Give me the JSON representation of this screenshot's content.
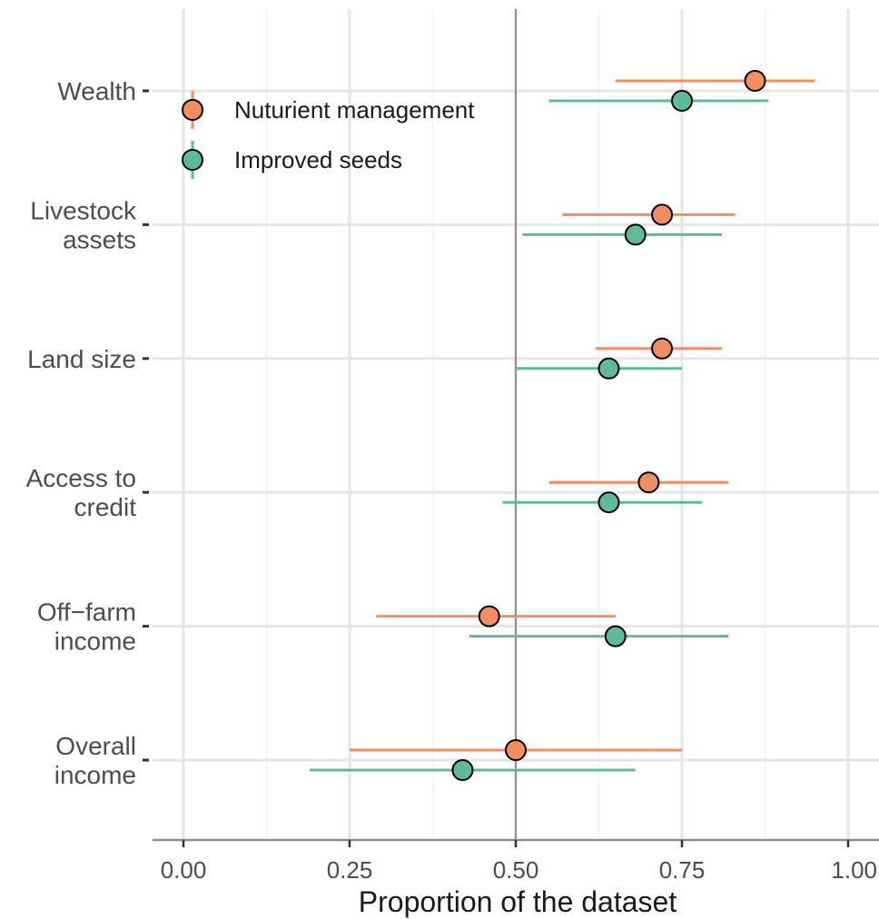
{
  "chart_data": {
    "type": "scatter",
    "xlabel": "Proportion of the dataset",
    "xlim": [
      0.0,
      1.0
    ],
    "x_ticks": [
      "0.00",
      "0.25",
      "0.50",
      "0.75",
      "1.00"
    ],
    "reference_line": 0.5,
    "grid": true,
    "legend_position": "top-left",
    "categories": [
      [
        "Wealth"
      ],
      [
        "Livestock",
        "assets"
      ],
      [
        "Land size"
      ],
      [
        "Access to",
        "credit"
      ],
      [
        "Off−farm",
        "income"
      ],
      [
        "Overall",
        "income"
      ]
    ],
    "series": [
      {
        "name": "Nuturient management",
        "color": "#F28E62",
        "values": [
          0.86,
          0.72,
          0.72,
          0.7,
          0.46,
          0.5
        ],
        "ci_low": [
          0.65,
          0.57,
          0.62,
          0.55,
          0.29,
          0.25
        ],
        "ci_high": [
          0.95,
          0.83,
          0.81,
          0.82,
          0.65,
          0.75
        ]
      },
      {
        "name": "Improved seeds",
        "color": "#5DBB9A",
        "values": [
          0.75,
          0.68,
          0.64,
          0.64,
          0.65,
          0.42
        ],
        "ci_low": [
          0.55,
          0.51,
          0.5,
          0.48,
          0.43,
          0.19
        ],
        "ci_high": [
          0.88,
          0.81,
          0.75,
          0.78,
          0.82,
          0.68
        ]
      }
    ]
  }
}
